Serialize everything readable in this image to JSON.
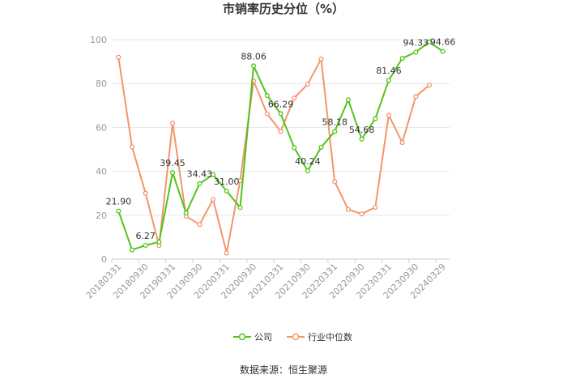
{
  "chart_data": {
    "type": "line",
    "title": "市销率历史分位（%）",
    "ylim": [
      0,
      100
    ],
    "y_ticks": [
      0,
      20,
      40,
      60,
      80,
      100
    ],
    "grid": true,
    "legend_position": "bottom-center",
    "x": [
      "20180331",
      "20180630",
      "20180930",
      "20181231",
      "20190331",
      "20190630",
      "20190930",
      "20191231",
      "20200331",
      "20200630",
      "20200930",
      "20201231",
      "20210331",
      "20210630",
      "20210930",
      "20211231",
      "20220331",
      "20220630",
      "20220930",
      "20221231",
      "20230331",
      "20230630",
      "20230930",
      "20231231",
      "20240329"
    ],
    "x_tick_labels": [
      "20180331",
      "20180930",
      "20190331",
      "20190930",
      "20200331",
      "20200930",
      "20210331",
      "20210930",
      "20220331",
      "20220930",
      "20230331",
      "20230930",
      "20240329"
    ],
    "series": [
      {
        "name": "公司",
        "color": "#52c41a",
        "values": [
          21.9,
          4.2,
          6.27,
          7.8,
          39.45,
          21.0,
          34.43,
          38.5,
          31.0,
          23.5,
          88.06,
          74.5,
          66.29,
          50.8,
          40.24,
          51.0,
          58.18,
          72.6,
          54.68,
          64.0,
          81.46,
          91.5,
          94.33,
          99.0,
          94.66
        ],
        "data_labels": [
          {
            "index": 0,
            "text": "21.90"
          },
          {
            "index": 2,
            "text": "6.27"
          },
          {
            "index": 4,
            "text": "39.45"
          },
          {
            "index": 6,
            "text": "34.43"
          },
          {
            "index": 8,
            "text": "31.00"
          },
          {
            "index": 10,
            "text": "88.06"
          },
          {
            "index": 12,
            "text": "66.29"
          },
          {
            "index": 14,
            "text": "40.24"
          },
          {
            "index": 16,
            "text": "58.18"
          },
          {
            "index": 18,
            "text": "54.68"
          },
          {
            "index": 20,
            "text": "81.46"
          },
          {
            "index": 22,
            "text": "94.33"
          },
          {
            "index": 24,
            "text": "94.66"
          }
        ]
      },
      {
        "name": "行业中位数",
        "color": "#f4956a",
        "values": [
          92.0,
          51.2,
          30.0,
          6.2,
          62.0,
          19.5,
          15.8,
          27.2,
          2.8,
          35.8,
          81.2,
          66.2,
          58.2,
          73.4,
          79.7,
          91.2,
          35.3,
          22.6,
          20.6,
          23.6,
          65.6,
          53.1,
          74.1,
          79.3,
          null
        ]
      }
    ],
    "source": "数据来源：恒生聚源"
  }
}
